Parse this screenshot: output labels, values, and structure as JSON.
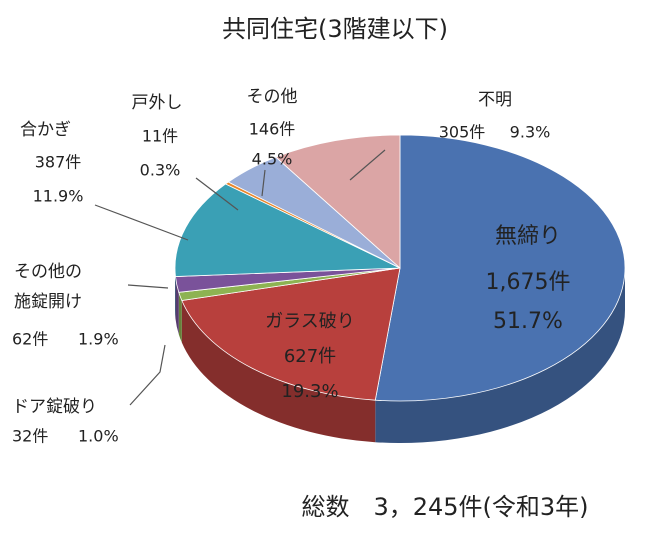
{
  "chart_data": {
    "type": "pie",
    "title": "共同住宅(3階建以下)",
    "annotation": "総数　3，245件(令和3年)",
    "categories": [
      "無締り",
      "ガラス破り",
      "ドア錠破り",
      [
        "その他の",
        "施錠開け"
      ],
      "合かぎ",
      "戸外し",
      "その他",
      "不明"
    ],
    "values": [
      51.7,
      19.3,
      1.0,
      1.9,
      11.9,
      0.3,
      4.5,
      9.3
    ],
    "value_labels": [
      "51.7%",
      "19.3%",
      "1.0%",
      "1.9%",
      "11.9%",
      "0.3%",
      "4.5%",
      "9.3%"
    ],
    "counts": [
      1675,
      627,
      32,
      62,
      387,
      11,
      146,
      305
    ],
    "count_labels": [
      "1,675件",
      "627件",
      "32件",
      "62件",
      "387件",
      "11件",
      "146件",
      "305件"
    ],
    "colors": [
      "#4a72b0",
      "#b8403d",
      "#8db352",
      "#7a529a",
      "#3aa0b5",
      "#e8862c",
      "#9aaed8",
      "#dba5a5"
    ]
  }
}
